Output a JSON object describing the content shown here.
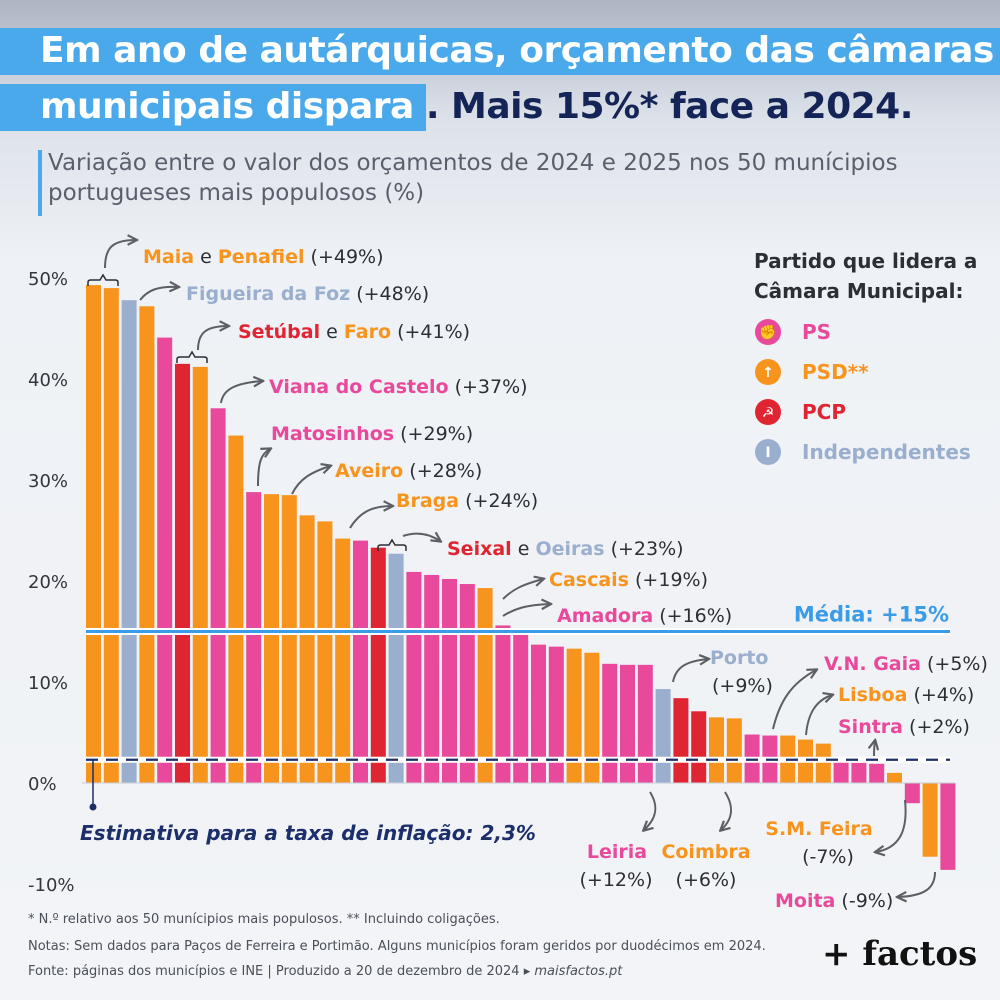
{
  "title": {
    "line1": "Em ano de autárquicas, orçamento das câmaras",
    "line2_highlight": "municipais dispara",
    "line2_rest": ". Mais 15%* face a 2024."
  },
  "subtitle": "Variação entre o valor dos orçamentos de 2024 e 2025 nos 50 munícipios portugueses mais populosos (%)",
  "legend": {
    "title_line1": "Partido que lidera a",
    "title_line2": "Câmara Municipal:",
    "items": [
      {
        "label": "PS",
        "color": "#e8499b",
        "icon": "rose-fist-icon"
      },
      {
        "label": "PSD**",
        "color": "#f7941d",
        "icon": "psd-arrow-icon"
      },
      {
        "label": "PCP",
        "color": "#e02532",
        "icon": "hammer-sickle-icon"
      },
      {
        "label": "Independentes",
        "color": "#9aaecd",
        "icon": "i-icon"
      }
    ]
  },
  "colors": {
    "PS": "#e8499b",
    "PSD": "#f7941d",
    "PCP": "#e02532",
    "IND": "#9aaecd",
    "media": "#3a9be8",
    "inflacao": "#1c2f6a"
  },
  "chart_data": {
    "type": "bar",
    "ylabel": "",
    "xlabel": "",
    "ylim": [
      -10,
      50
    ],
    "yticks": [
      "-10%",
      "0%",
      "10%",
      "20%",
      "30%",
      "40%",
      "50%"
    ],
    "series": [
      {
        "values": [
          49.3,
          49.0,
          47.8,
          47.2,
          44.1,
          41.5,
          41.2,
          37.1,
          34.4,
          28.8,
          28.6,
          28.5,
          26.5,
          25.9,
          24.2,
          24.0,
          23.3,
          22.7,
          20.9,
          20.6,
          20.2,
          19.7,
          19.3,
          15.6,
          15.0,
          13.7,
          13.5,
          13.3,
          12.9,
          11.8,
          11.7,
          11.7,
          9.3,
          8.4,
          7.1,
          6.5,
          6.4,
          4.8,
          4.7,
          4.7,
          4.3,
          3.9,
          2.4,
          2.0,
          1.9,
          1.0,
          -2.0,
          -7.3,
          -8.6
        ],
        "party": [
          "PSD",
          "PSD",
          "IND",
          "PSD",
          "PS",
          "PCP",
          "PSD",
          "PS",
          "PSD",
          "PS",
          "PSD",
          "PSD",
          "PSD",
          "PSD",
          "PSD",
          "PS",
          "PCP",
          "IND",
          "PS",
          "PS",
          "PS",
          "PS",
          "PSD",
          "PS",
          "PS",
          "PS",
          "PS",
          "PSD",
          "PSD",
          "PS",
          "PS",
          "PS",
          "IND",
          "PCP",
          "PCP",
          "PSD",
          "PSD",
          "PS",
          "PS",
          "PSD",
          "PSD",
          "PSD",
          "PS",
          "PS",
          "PS",
          "PSD",
          "PS",
          "PSD",
          "PS"
        ]
      }
    ],
    "media": {
      "value": 15,
      "label": "Média: +15%"
    },
    "inflacao": {
      "value": 2.3,
      "label": "Estimativa para a taxa de inflação: 2,3%"
    },
    "annotations": [
      {
        "parts": [
          {
            "t": "Maia",
            "c": "PSD"
          },
          {
            "t": " e ",
            "c": "TXT"
          },
          {
            "t": "Penafiel",
            "c": "PSD"
          },
          {
            "t": " (+49%)",
            "c": "TXT"
          }
        ]
      },
      {
        "parts": [
          {
            "t": "Figueira da Foz",
            "c": "IND"
          },
          {
            "t": " (+48%)",
            "c": "TXT"
          }
        ]
      },
      {
        "parts": [
          {
            "t": "Setúbal",
            "c": "PCP"
          },
          {
            "t": " e ",
            "c": "TXT"
          },
          {
            "t": "Faro",
            "c": "PSD"
          },
          {
            "t": " (+41%)",
            "c": "TXT"
          }
        ]
      },
      {
        "parts": [
          {
            "t": "Viana do Castelo",
            "c": "PS"
          },
          {
            "t": " (+37%)",
            "c": "TXT"
          }
        ]
      },
      {
        "parts": [
          {
            "t": "Matosinhos",
            "c": "PS"
          },
          {
            "t": " (+29%)",
            "c": "TXT"
          }
        ]
      },
      {
        "parts": [
          {
            "t": "Aveiro",
            "c": "PSD"
          },
          {
            "t": " (+28%)",
            "c": "TXT"
          }
        ]
      },
      {
        "parts": [
          {
            "t": "Braga",
            "c": "PSD"
          },
          {
            "t": " (+24%)",
            "c": "TXT"
          }
        ]
      },
      {
        "parts": [
          {
            "t": "Seixal",
            "c": "PCP"
          },
          {
            "t": " e ",
            "c": "TXT"
          },
          {
            "t": "Oeiras",
            "c": "IND"
          },
          {
            "t": " (+23%)",
            "c": "TXT"
          }
        ]
      },
      {
        "parts": [
          {
            "t": "Cascais",
            "c": "PSD"
          },
          {
            "t": " (+19%)",
            "c": "TXT"
          }
        ]
      },
      {
        "parts": [
          {
            "t": "Amadora",
            "c": "PS"
          },
          {
            "t": " (+16%)",
            "c": "TXT"
          }
        ]
      },
      {
        "parts": [
          {
            "t": "Porto",
            "c": "IND"
          }
        ]
      },
      {
        "parts": [
          {
            "t": "(+9%)",
            "c": "TXT"
          }
        ]
      },
      {
        "parts": [
          {
            "t": "V.N. Gaia",
            "c": "PS"
          },
          {
            "t": " (+5%)",
            "c": "TXT"
          }
        ]
      },
      {
        "parts": [
          {
            "t": "Lisboa",
            "c": "PSD"
          },
          {
            "t": " (+4%)",
            "c": "TXT"
          }
        ]
      },
      {
        "parts": [
          {
            "t": "Sintra",
            "c": "PS"
          },
          {
            "t": " (+2%)",
            "c": "TXT"
          }
        ]
      },
      {
        "parts": [
          {
            "t": "Leiria",
            "c": "PS"
          }
        ]
      },
      {
        "parts": [
          {
            "t": "(+12%)",
            "c": "TXT"
          }
        ]
      },
      {
        "parts": [
          {
            "t": "Coimbra",
            "c": "PSD"
          }
        ]
      },
      {
        "parts": [
          {
            "t": "(+6%)",
            "c": "TXT"
          }
        ]
      },
      {
        "parts": [
          {
            "t": "S.M. Feira",
            "c": "PSD"
          }
        ]
      },
      {
        "parts": [
          {
            "t": "(-7%)",
            "c": "TXT"
          }
        ]
      },
      {
        "parts": [
          {
            "t": "Moita",
            "c": "PS"
          },
          {
            "t": " (-9%)",
            "c": "TXT"
          }
        ]
      }
    ]
  },
  "notes": {
    "n1": "* N.º relativo aos 50 munícipios mais populosos. ** Incluindo coligações.",
    "n2": "Notas: Sem dados para Paços de Ferreira e Portimão. Alguns municípios foram geridos por duodécimos em 2024.",
    "n3a": "Fonte: páginas dos municípios e INE  |  Produzido a 20 de dezembro de 2024 ",
    "n3b": "maisfactos.pt"
  },
  "brand": "+ factos"
}
